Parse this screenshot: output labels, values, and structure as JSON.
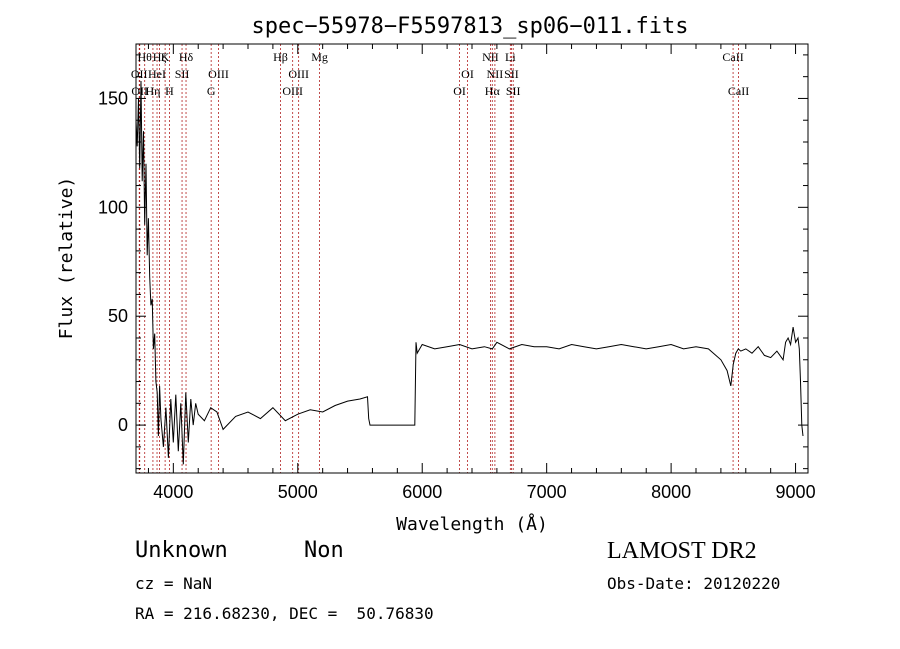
{
  "chart_data": {
    "type": "line",
    "title": "spec−55978−F5597813_sp06−011.fits",
    "xlabel": "Wavelength (Å)",
    "ylabel": "Flux (relative)",
    "xlim": [
      3700,
      9100
    ],
    "ylim": [
      -22,
      175
    ],
    "x_ticks": [
      4000,
      5000,
      6000,
      7000,
      8000,
      9000
    ],
    "y_ticks": [
      0,
      50,
      100,
      150
    ],
    "grid": false,
    "series": [
      {
        "color": "#000000",
        "x": [
          3700,
          3710,
          3720,
          3730,
          3740,
          3750,
          3760,
          3770,
          3780,
          3790,
          3800,
          3810,
          3820,
          3830,
          3840,
          3850,
          3860,
          3870,
          3880,
          3890,
          3900,
          3920,
          3940,
          3960,
          3980,
          4000,
          4020,
          4040,
          4060,
          4080,
          4100,
          4120,
          4140,
          4160,
          4180,
          4200,
          4250,
          4300,
          4350,
          4400,
          4500,
          4600,
          4700,
          4800,
          4900,
          5000,
          5100,
          5200,
          5300,
          5400,
          5500,
          5560,
          5570,
          5580,
          5940,
          5950,
          5960,
          6000,
          6100,
          6200,
          6300,
          6400,
          6500,
          6563,
          6600,
          6700,
          6800,
          6900,
          7000,
          7100,
          7200,
          7300,
          7400,
          7500,
          7600,
          7700,
          7800,
          7900,
          8000,
          8100,
          8200,
          8300,
          8400,
          8450,
          8480,
          8500,
          8520,
          8540,
          8560,
          8600,
          8650,
          8700,
          8750,
          8800,
          8850,
          8900,
          8920,
          8940,
          8960,
          8980,
          9000,
          9020,
          9030,
          9040,
          9050,
          9060
        ],
        "y": [
          140,
          128,
          150,
          118,
          158,
          112,
          135,
          92,
          120,
          78,
          95,
          68,
          55,
          58,
          35,
          42,
          20,
          15,
          -5,
          18,
          3,
          -10,
          8,
          -15,
          12,
          -8,
          14,
          -12,
          10,
          -18,
          15,
          -8,
          12,
          0,
          10,
          5,
          2,
          8,
          6,
          -2,
          4,
          6,
          3,
          8,
          2,
          5,
          7,
          6,
          9,
          11,
          12,
          13,
          3,
          0,
          0,
          38,
          33,
          37,
          35,
          36,
          37,
          35,
          36,
          35,
          38,
          35,
          37,
          36,
          36,
          35,
          37,
          36,
          35,
          36,
          37,
          36,
          35,
          36,
          37,
          35,
          36,
          35,
          30,
          25,
          18,
          28,
          33,
          35,
          34,
          35,
          33,
          36,
          32,
          31,
          34,
          30,
          38,
          40,
          37,
          45,
          38,
          40,
          35,
          20,
          0,
          -5
        ]
      }
    ],
    "line_markers": [
      {
        "wl": 3726,
        "label": "OII",
        "row": 2
      },
      {
        "wl": 3730,
        "label": "OII",
        "row": 3
      },
      {
        "wl": 3770,
        "label": "Hθ",
        "row": 1
      },
      {
        "wl": 3836,
        "label": "Hη",
        "row": 3
      },
      {
        "wl": 3869,
        "label": "HeI",
        "row": 2
      },
      {
        "wl": 3889,
        "label": "Hζ",
        "row": 1
      },
      {
        "wl": 3934,
        "label": "K",
        "row": 1
      },
      {
        "wl": 3969,
        "label": "H",
        "row": 3
      },
      {
        "wl": 4070,
        "label": "SII",
        "row": 2
      },
      {
        "wl": 4102,
        "label": "Hδ",
        "row": 1
      },
      {
        "wl": 4304,
        "label": "G",
        "row": 3
      },
      {
        "wl": 4363,
        "label": "OIII",
        "row": 2
      },
      {
        "wl": 4861,
        "label": "Hβ",
        "row": 1
      },
      {
        "wl": 4959,
        "label": "OIII",
        "row": 3
      },
      {
        "wl": 5007,
        "label": "OIII",
        "row": 2
      },
      {
        "wl": 5175,
        "label": "Mg",
        "row": 1
      },
      {
        "wl": 6300,
        "label": "OI",
        "row": 3
      },
      {
        "wl": 6364,
        "label": "OI",
        "row": 2
      },
      {
        "wl": 6548,
        "label": "NII",
        "row": 1
      },
      {
        "wl": 6563,
        "label": "Hα",
        "row": 3
      },
      {
        "wl": 6584,
        "label": "NII",
        "row": 2
      },
      {
        "wl": 6708,
        "label": "Li",
        "row": 1
      },
      {
        "wl": 6717,
        "label": "SII",
        "row": 2
      },
      {
        "wl": 6731,
        "label": "SII",
        "row": 3
      },
      {
        "wl": 8498,
        "label": "CaII",
        "row": 1
      },
      {
        "wl": 8542,
        "label": "CaII",
        "row": 3
      }
    ],
    "marker_color": "#b22222"
  },
  "info": {
    "class": "Unknown",
    "subclass": "Non",
    "survey": "LAMOST DR2",
    "cz": "cz = NaN",
    "obs_date": "Obs-Date: 20120220",
    "radec": "RA = 216.68230, DEC =  50.76830"
  }
}
